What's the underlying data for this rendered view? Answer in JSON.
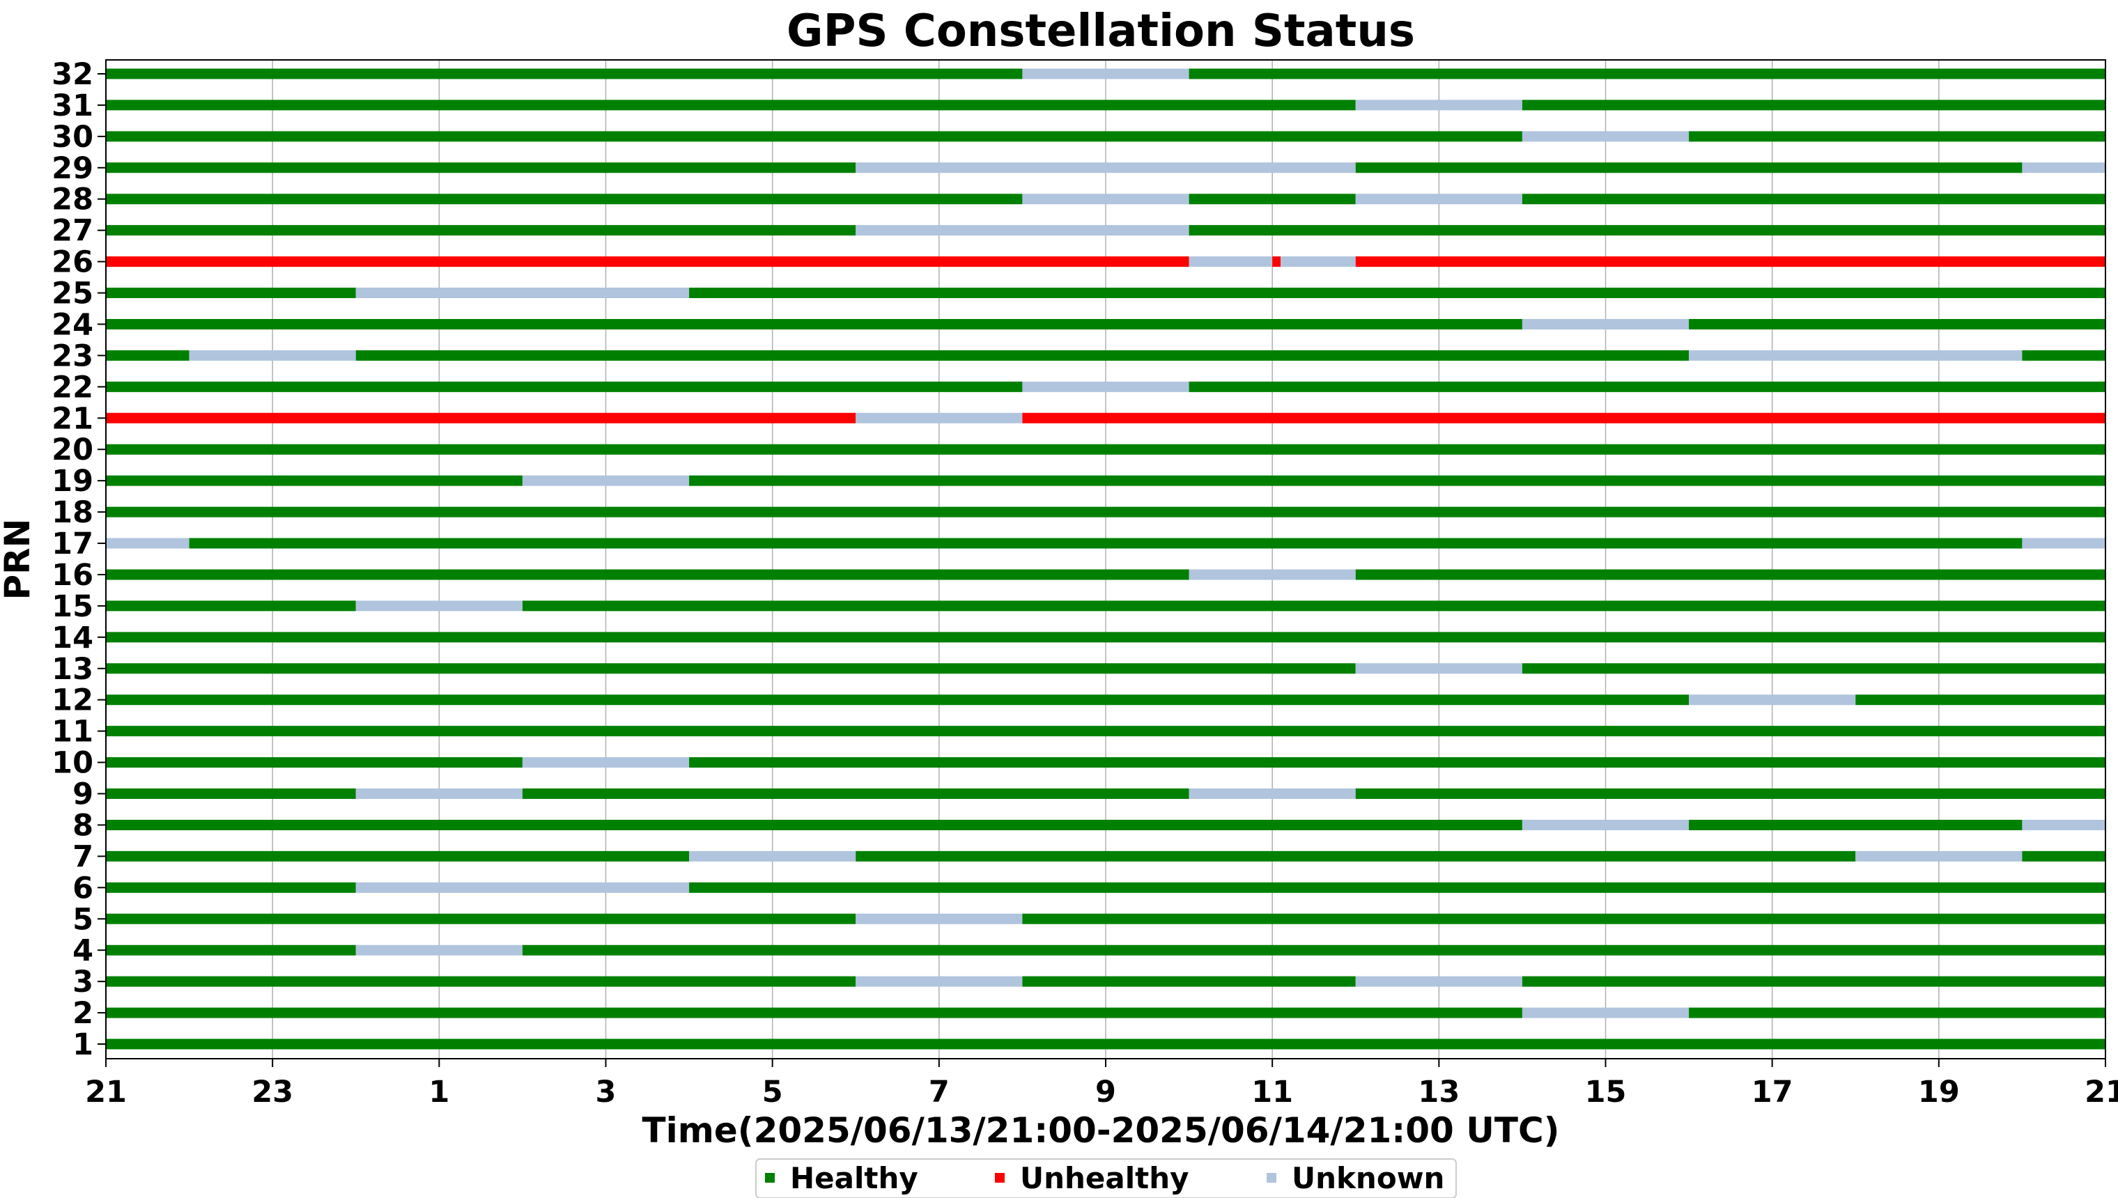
{
  "chart_data": {
    "type": "timeline",
    "title": "GPS Constellation Status",
    "xlabel": "Time(2025/06/13/21:00-2025/06/14/21:00 UTC)",
    "ylabel": "PRN",
    "x_range_hours": [
      0,
      24
    ],
    "x_ticks": [
      {
        "hour": 0,
        "label": "21"
      },
      {
        "hour": 2,
        "label": "23"
      },
      {
        "hour": 4,
        "label": "1"
      },
      {
        "hour": 6,
        "label": "3"
      },
      {
        "hour": 8,
        "label": "5"
      },
      {
        "hour": 10,
        "label": "7"
      },
      {
        "hour": 12,
        "label": "9"
      },
      {
        "hour": 14,
        "label": "11"
      },
      {
        "hour": 16,
        "label": "13"
      },
      {
        "hour": 18,
        "label": "15"
      },
      {
        "hour": 20,
        "label": "17"
      },
      {
        "hour": 22,
        "label": "19"
      },
      {
        "hour": 24,
        "label": "21"
      }
    ],
    "grid": "vertical",
    "legend": {
      "placement": "bottom-center",
      "entries": [
        {
          "key": "healthy",
          "label": "Healthy",
          "color": "#008000"
        },
        {
          "key": "unhealthy",
          "label": "Unhealthy",
          "color": "#ff0000"
        },
        {
          "key": "unknown",
          "label": "Unknown",
          "color": "#b0c4de"
        }
      ]
    },
    "series": [
      {
        "prn": 1,
        "segments": [
          [
            0,
            24,
            "healthy"
          ]
        ]
      },
      {
        "prn": 2,
        "segments": [
          [
            0,
            17,
            "healthy"
          ],
          [
            17,
            19,
            "unknown"
          ],
          [
            19,
            24,
            "healthy"
          ]
        ]
      },
      {
        "prn": 3,
        "segments": [
          [
            0,
            9,
            "healthy"
          ],
          [
            9,
            11,
            "unknown"
          ],
          [
            11,
            15,
            "healthy"
          ],
          [
            15,
            17,
            "unknown"
          ],
          [
            17,
            24,
            "healthy"
          ]
        ]
      },
      {
        "prn": 4,
        "segments": [
          [
            0,
            3,
            "healthy"
          ],
          [
            3,
            5,
            "unknown"
          ],
          [
            5,
            24,
            "healthy"
          ]
        ]
      },
      {
        "prn": 5,
        "segments": [
          [
            0,
            9,
            "healthy"
          ],
          [
            9,
            11,
            "unknown"
          ],
          [
            11,
            24,
            "healthy"
          ]
        ]
      },
      {
        "prn": 6,
        "segments": [
          [
            0,
            3,
            "healthy"
          ],
          [
            3,
            7,
            "unknown"
          ],
          [
            7,
            24,
            "healthy"
          ]
        ]
      },
      {
        "prn": 7,
        "segments": [
          [
            0,
            7,
            "healthy"
          ],
          [
            7,
            9,
            "unknown"
          ],
          [
            9,
            21,
            "healthy"
          ],
          [
            21,
            23,
            "unknown"
          ],
          [
            23,
            24,
            "healthy"
          ]
        ]
      },
      {
        "prn": 8,
        "segments": [
          [
            0,
            17,
            "healthy"
          ],
          [
            17,
            19,
            "unknown"
          ],
          [
            19,
            23,
            "healthy"
          ],
          [
            23,
            24,
            "unknown"
          ]
        ]
      },
      {
        "prn": 9,
        "segments": [
          [
            0,
            3,
            "healthy"
          ],
          [
            3,
            5,
            "unknown"
          ],
          [
            5,
            13,
            "healthy"
          ],
          [
            13,
            15,
            "unknown"
          ],
          [
            15,
            24,
            "healthy"
          ]
        ]
      },
      {
        "prn": 10,
        "segments": [
          [
            0,
            5,
            "healthy"
          ],
          [
            5,
            7,
            "unknown"
          ],
          [
            7,
            24,
            "healthy"
          ]
        ]
      },
      {
        "prn": 11,
        "segments": [
          [
            0,
            24,
            "healthy"
          ]
        ]
      },
      {
        "prn": 12,
        "segments": [
          [
            0,
            19,
            "healthy"
          ],
          [
            19,
            21,
            "unknown"
          ],
          [
            21,
            24,
            "healthy"
          ]
        ]
      },
      {
        "prn": 13,
        "segments": [
          [
            0,
            15,
            "healthy"
          ],
          [
            15,
            17,
            "unknown"
          ],
          [
            17,
            24,
            "healthy"
          ]
        ]
      },
      {
        "prn": 14,
        "segments": [
          [
            0,
            24,
            "healthy"
          ]
        ]
      },
      {
        "prn": 15,
        "segments": [
          [
            0,
            3,
            "healthy"
          ],
          [
            3,
            5,
            "unknown"
          ],
          [
            5,
            24,
            "healthy"
          ]
        ]
      },
      {
        "prn": 16,
        "segments": [
          [
            0,
            13,
            "healthy"
          ],
          [
            13,
            15,
            "unknown"
          ],
          [
            15,
            24,
            "healthy"
          ]
        ]
      },
      {
        "prn": 17,
        "segments": [
          [
            0,
            1,
            "unknown"
          ],
          [
            1,
            23,
            "healthy"
          ],
          [
            23,
            24,
            "unknown"
          ]
        ]
      },
      {
        "prn": 18,
        "segments": [
          [
            0,
            24,
            "healthy"
          ]
        ]
      },
      {
        "prn": 19,
        "segments": [
          [
            0,
            5,
            "healthy"
          ],
          [
            5,
            7,
            "unknown"
          ],
          [
            7,
            24,
            "healthy"
          ]
        ]
      },
      {
        "prn": 20,
        "segments": [
          [
            0,
            24,
            "healthy"
          ]
        ]
      },
      {
        "prn": 21,
        "segments": [
          [
            0,
            9,
            "unhealthy"
          ],
          [
            9,
            11,
            "unknown"
          ],
          [
            11,
            24,
            "unhealthy"
          ]
        ]
      },
      {
        "prn": 22,
        "segments": [
          [
            0,
            11,
            "healthy"
          ],
          [
            11,
            13,
            "unknown"
          ],
          [
            13,
            24,
            "healthy"
          ]
        ]
      },
      {
        "prn": 23,
        "segments": [
          [
            0,
            1,
            "healthy"
          ],
          [
            1,
            3,
            "unknown"
          ],
          [
            3,
            19,
            "healthy"
          ],
          [
            19,
            23,
            "unknown"
          ],
          [
            23,
            24,
            "healthy"
          ]
        ]
      },
      {
        "prn": 24,
        "segments": [
          [
            0,
            17,
            "healthy"
          ],
          [
            17,
            19,
            "unknown"
          ],
          [
            19,
            24,
            "healthy"
          ]
        ]
      },
      {
        "prn": 25,
        "segments": [
          [
            0,
            3,
            "healthy"
          ],
          [
            3,
            7,
            "unknown"
          ],
          [
            7,
            24,
            "healthy"
          ]
        ]
      },
      {
        "prn": 26,
        "segments": [
          [
            0,
            13,
            "unhealthy"
          ],
          [
            13,
            14,
            "unknown"
          ],
          [
            14,
            14.1,
            "unhealthy"
          ],
          [
            14.1,
            15,
            "unknown"
          ],
          [
            15,
            24,
            "unhealthy"
          ]
        ]
      },
      {
        "prn": 27,
        "segments": [
          [
            0,
            9,
            "healthy"
          ],
          [
            9,
            13,
            "unknown"
          ],
          [
            13,
            24,
            "healthy"
          ]
        ]
      },
      {
        "prn": 28,
        "segments": [
          [
            0,
            11,
            "healthy"
          ],
          [
            11,
            13,
            "unknown"
          ],
          [
            13,
            15,
            "healthy"
          ],
          [
            15,
            17,
            "unknown"
          ],
          [
            17,
            24,
            "healthy"
          ]
        ]
      },
      {
        "prn": 29,
        "segments": [
          [
            0,
            9,
            "healthy"
          ],
          [
            9,
            15,
            "unknown"
          ],
          [
            15,
            23,
            "healthy"
          ],
          [
            23,
            24,
            "unknown"
          ]
        ]
      },
      {
        "prn": 30,
        "segments": [
          [
            0,
            17,
            "healthy"
          ],
          [
            17,
            19,
            "unknown"
          ],
          [
            19,
            24,
            "healthy"
          ]
        ]
      },
      {
        "prn": 31,
        "segments": [
          [
            0,
            15,
            "healthy"
          ],
          [
            15,
            17,
            "unknown"
          ],
          [
            17,
            24,
            "healthy"
          ]
        ]
      },
      {
        "prn": 32,
        "segments": [
          [
            0,
            11,
            "healthy"
          ],
          [
            11,
            13,
            "unknown"
          ],
          [
            13,
            24,
            "healthy"
          ]
        ]
      }
    ]
  }
}
